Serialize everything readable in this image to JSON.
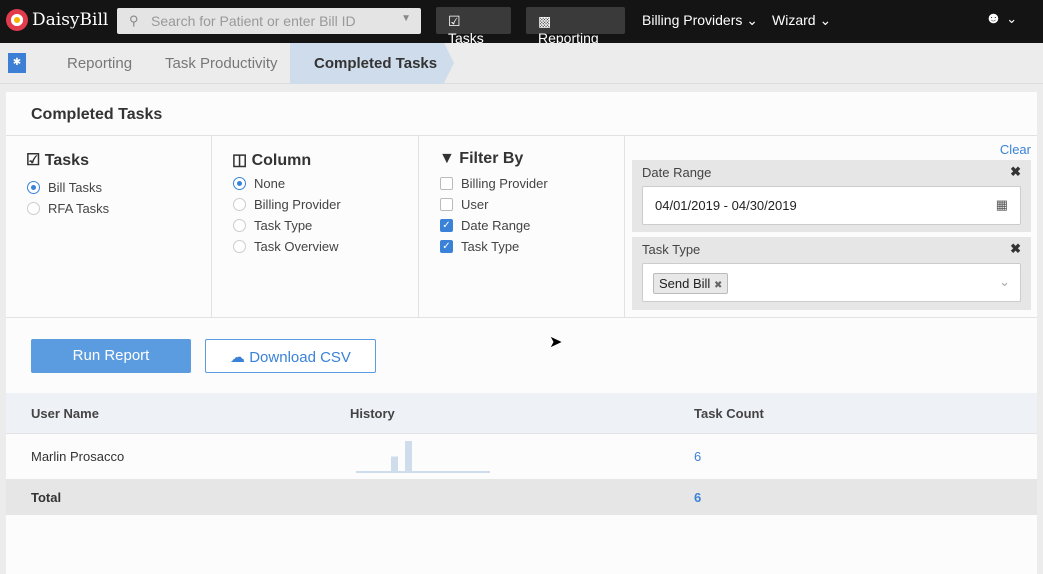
{
  "app": {
    "name": "DaisyBill"
  },
  "topbar": {
    "search_placeholder": "Search for Patient or enter Bill ID",
    "tasks": "Tasks",
    "reporting": "Reporting",
    "billing_providers": "Billing Providers",
    "wizard": "Wizard"
  },
  "breadcrumb": [
    "Reporting",
    "Task Productivity",
    "Completed Tasks"
  ],
  "page": {
    "title": "Completed Tasks"
  },
  "tasks": {
    "heading": "Tasks",
    "options": [
      "Bill Tasks",
      "RFA Tasks"
    ],
    "selected": "Bill Tasks"
  },
  "column": {
    "heading": "Column",
    "options": [
      "None",
      "Billing Provider",
      "Task Type",
      "Task Overview"
    ],
    "selected": "None"
  },
  "filter_by": {
    "heading": "Filter By",
    "options": [
      {
        "label": "Billing Provider",
        "checked": false
      },
      {
        "label": "User",
        "checked": false
      },
      {
        "label": "Date Range",
        "checked": true
      },
      {
        "label": "Task Type",
        "checked": true
      }
    ]
  },
  "filters": {
    "clear": "Clear",
    "date_range": {
      "label": "Date Range",
      "value": "04/01/2019 - 04/30/2019"
    },
    "task_type": {
      "label": "Task Type",
      "tags": [
        "Send Bill"
      ]
    }
  },
  "actions": {
    "run_report": "Run Report",
    "download_csv": "Download CSV"
  },
  "table": {
    "headers": [
      "User Name",
      "History",
      "Task Count"
    ],
    "rows": [
      {
        "user": "Marlin Prosacco",
        "history": [
          0,
          0,
          0,
          0,
          0,
          2,
          0,
          4,
          0,
          0,
          0,
          0,
          0,
          0,
          0,
          0,
          0,
          0,
          0,
          0
        ],
        "count": "6"
      }
    ],
    "total_label": "Total",
    "total": "6"
  },
  "colors": {
    "accent": "#3a82d8",
    "topbar": "#141414",
    "spark": "#cfdcec"
  }
}
